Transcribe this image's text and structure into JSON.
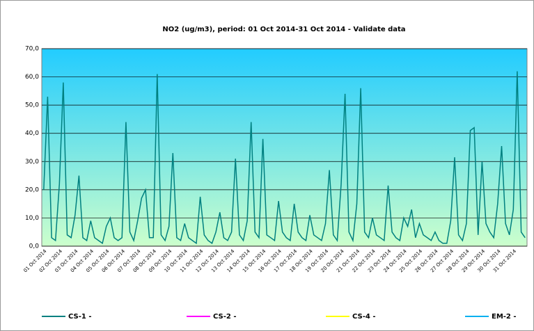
{
  "chart_data": {
    "type": "line",
    "title": "NO2 (ug/m3), period: 01 Oct 2014-31 Oct 2014 - Validate data",
    "categories": [
      "01 Oct 2014",
      null,
      null,
      null,
      "02 Oct 2014",
      null,
      null,
      null,
      "03 Oct 2014",
      null,
      null,
      null,
      "04 Oct 2014",
      null,
      null,
      null,
      "05 Oct 2014",
      null,
      null,
      null,
      "06 Oct 2014",
      null,
      null,
      null,
      "07 Oct 2014",
      null,
      null,
      null,
      "08 Oct 2014",
      null,
      null,
      null,
      "09 Oct 2014",
      null,
      null,
      null,
      "10 Oct 2014",
      null,
      null,
      null,
      "11 Oct 2014",
      null,
      null,
      null,
      "12 Oct 2014",
      null,
      null,
      null,
      "13 Oct 2014",
      null,
      null,
      null,
      "14 Oct 2014",
      null,
      null,
      null,
      "15 Oct 2014",
      null,
      null,
      null,
      "16 Oct 2014",
      null,
      null,
      null,
      "17 Oct 2014",
      null,
      null,
      null,
      "18 Oct 2014",
      null,
      null,
      null,
      "19 Oct 2014",
      null,
      null,
      null,
      "20 Oct 2014",
      null,
      null,
      null,
      "21 Oct 2014",
      null,
      null,
      null,
      "22 Oct 2014",
      null,
      null,
      null,
      "23 Oct 2014",
      null,
      null,
      null,
      "24 Oct 2014",
      null,
      null,
      null,
      "25 Oct 2014",
      null,
      null,
      null,
      "26 Oct 2014",
      null,
      null,
      null,
      "27 Oct 2014",
      null,
      null,
      null,
      "28 Oct 2014",
      null,
      null,
      null,
      "29 Oct 2014",
      null,
      null,
      null,
      "30 Oct 2014",
      null,
      null,
      null,
      "31 Oct 2014",
      null,
      null,
      null
    ],
    "series": [
      {
        "name": "CS-1 -",
        "color": "#008080",
        "values": [
          20,
          53,
          3,
          2,
          22,
          58,
          4,
          3,
          11,
          25,
          3,
          2,
          9,
          3,
          2,
          1,
          7,
          10,
          3,
          2,
          3,
          44,
          5,
          2,
          9,
          17,
          20,
          3,
          3,
          61,
          4,
          2,
          7,
          33,
          3,
          2,
          8,
          3,
          2,
          1,
          17.5,
          4,
          2,
          1,
          5,
          12,
          3,
          2,
          5,
          31,
          4,
          2,
          9,
          44,
          5,
          3,
          38,
          4,
          3,
          2,
          16,
          5,
          3,
          2,
          15,
          5,
          3,
          2,
          11,
          4,
          3,
          2,
          8,
          27,
          4,
          2,
          22,
          54,
          5,
          2,
          15,
          56,
          5,
          3,
          10,
          4,
          3,
          2,
          21.5,
          5,
          3,
          2,
          10,
          7,
          13,
          3,
          8,
          4,
          3,
          2,
          5,
          2,
          1,
          1,
          9,
          31.5,
          4,
          2,
          8,
          41,
          42,
          4,
          30,
          8,
          5,
          3,
          15,
          35.5,
          8,
          4,
          13,
          62,
          5,
          3
        ]
      },
      {
        "name": "CS-2 -",
        "color": "#ff00ff"
      },
      {
        "name": "CS-4 -",
        "color": "#ffff00"
      },
      {
        "name": "EM-2 -",
        "color": "#00b0f0"
      }
    ],
    "ylim": [
      0,
      70
    ],
    "yticks": [
      {
        "value": 0,
        "label": "0,0"
      },
      {
        "value": 10,
        "label": "10,0"
      },
      {
        "value": 20,
        "label": "20,0"
      },
      {
        "value": 30,
        "label": "30,0"
      },
      {
        "value": 40,
        "label": "40,0"
      },
      {
        "value": 50,
        "label": "50,0"
      },
      {
        "value": 60,
        "label": "60,0"
      },
      {
        "value": 70,
        "label": "70,0"
      }
    ],
    "grid": true
  }
}
